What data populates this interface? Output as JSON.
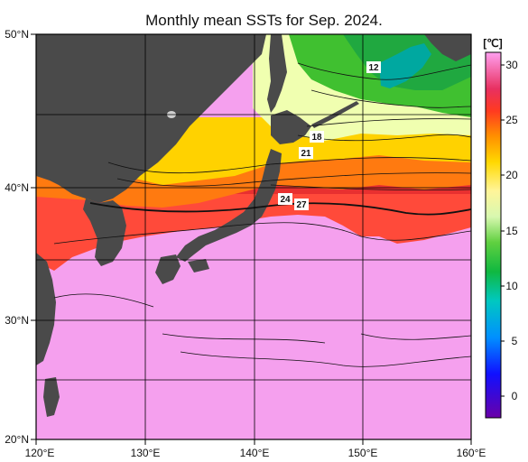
{
  "title": "Monthly mean SSTs for Sep. 2024.",
  "axes": {
    "lon_labels": [
      "120°E",
      "130°E",
      "140°E",
      "150°E",
      "160°E"
    ],
    "lat_labels": [
      "50°N",
      "40°N",
      "30°N",
      "20°N"
    ]
  },
  "colorbar": {
    "unit": "[℃]",
    "ticks": [
      "30",
      "25",
      "20",
      "15",
      "10",
      "5",
      "0"
    ],
    "colors": [
      "#6a00a8",
      "#0000ff",
      "#0077ff",
      "#00c0ff",
      "#00d070",
      "#40c020",
      "#90e040",
      "#f0ff90",
      "#fff080",
      "#ffe000",
      "#ff9000",
      "#ff4000",
      "#e02020",
      "#ff60a0",
      "#ffa0f0"
    ]
  },
  "isotherm_labels": [
    "12",
    "18",
    "21",
    "24",
    "27"
  ],
  "colors": {
    "land": "#4a4a4a",
    "warm_sea": "#f5a0ee",
    "hot_sea": "#e8304a",
    "frame": "#000000"
  }
}
